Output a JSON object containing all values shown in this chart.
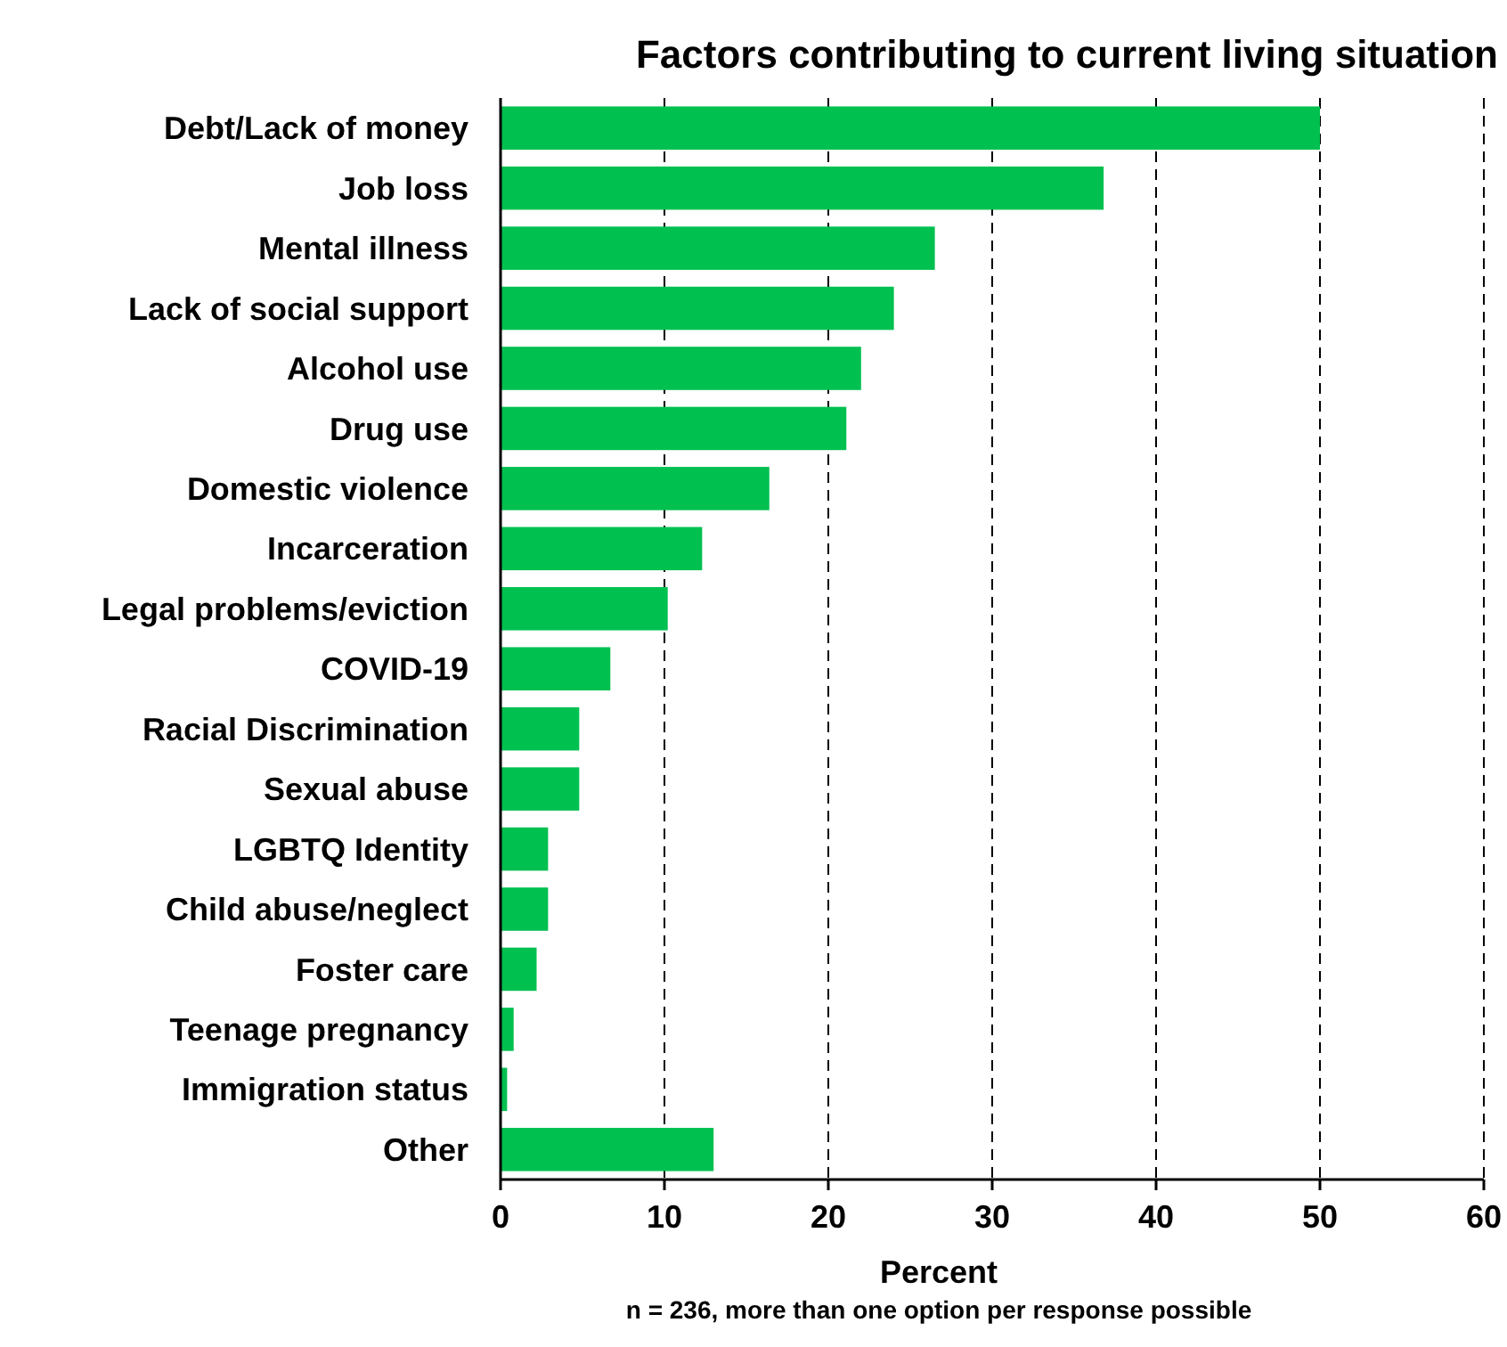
{
  "chart_data": {
    "type": "bar",
    "orientation": "horizontal",
    "title": "Factors contributing to current living situation",
    "xlabel": "Percent",
    "annotations": [
      "n = 236, more than one option per response  possible"
    ],
    "categories": [
      "Debt/Lack of money",
      "Job loss",
      "Mental illness",
      "Lack of social support",
      "Alcohol use",
      "Drug use",
      "Domestic violence",
      "Incarceration",
      "Legal problems/eviction",
      "COVID-19",
      "Racial Discrimination",
      "Sexual abuse",
      "LGBTQ Identity",
      "Child abuse/neglect",
      "Foster care",
      "Teenage pregnancy",
      "Immigration status",
      "Other"
    ],
    "values": [
      50,
      36.8,
      26.5,
      24,
      22,
      21.1,
      16.4,
      12.3,
      10.2,
      6.7,
      4.8,
      4.8,
      2.9,
      2.9,
      2.2,
      0.8,
      0.4,
      13
    ],
    "color": "#00c050",
    "xlim": [
      0,
      60
    ],
    "xticks": [
      0,
      10,
      20,
      30,
      40,
      50,
      60
    ],
    "grid": "x"
  }
}
